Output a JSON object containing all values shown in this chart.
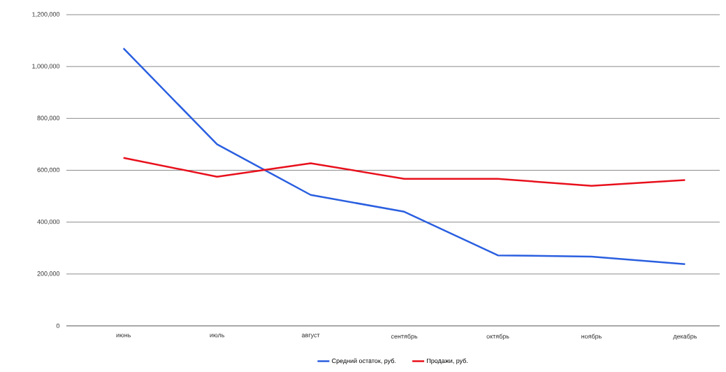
{
  "chart_data": {
    "type": "line",
    "categories": [
      "июнь",
      "июль",
      "август",
      "сентябрь",
      "октябрь",
      "ноябрь",
      "декабрь"
    ],
    "series": [
      {
        "name": "Средний остаток, руб.",
        "color": "#2a5fe0",
        "values": [
          1070000,
          700000,
          505000,
          440000,
          272000,
          267000,
          238000
        ]
      },
      {
        "name": "Продажи, руб.",
        "color": "#e8101c",
        "values": [
          648000,
          575000,
          627000,
          567000,
          567000,
          540000,
          562000
        ]
      }
    ],
    "ylim": [
      0,
      1200000
    ],
    "yticks": [
      {
        "value": 0,
        "label": "0"
      },
      {
        "value": 200000,
        "label": "200,000"
      },
      {
        "value": 400000,
        "label": "400,000"
      },
      {
        "value": 600000,
        "label": "600,000"
      },
      {
        "value": 800000,
        "label": "800,000"
      },
      {
        "value": 1000000,
        "label": "1,000,000"
      },
      {
        "value": 1200000,
        "label": "1,200,000"
      }
    ],
    "grid": "y",
    "legend": "bottom",
    "marker": "none",
    "line_style": "solid"
  }
}
